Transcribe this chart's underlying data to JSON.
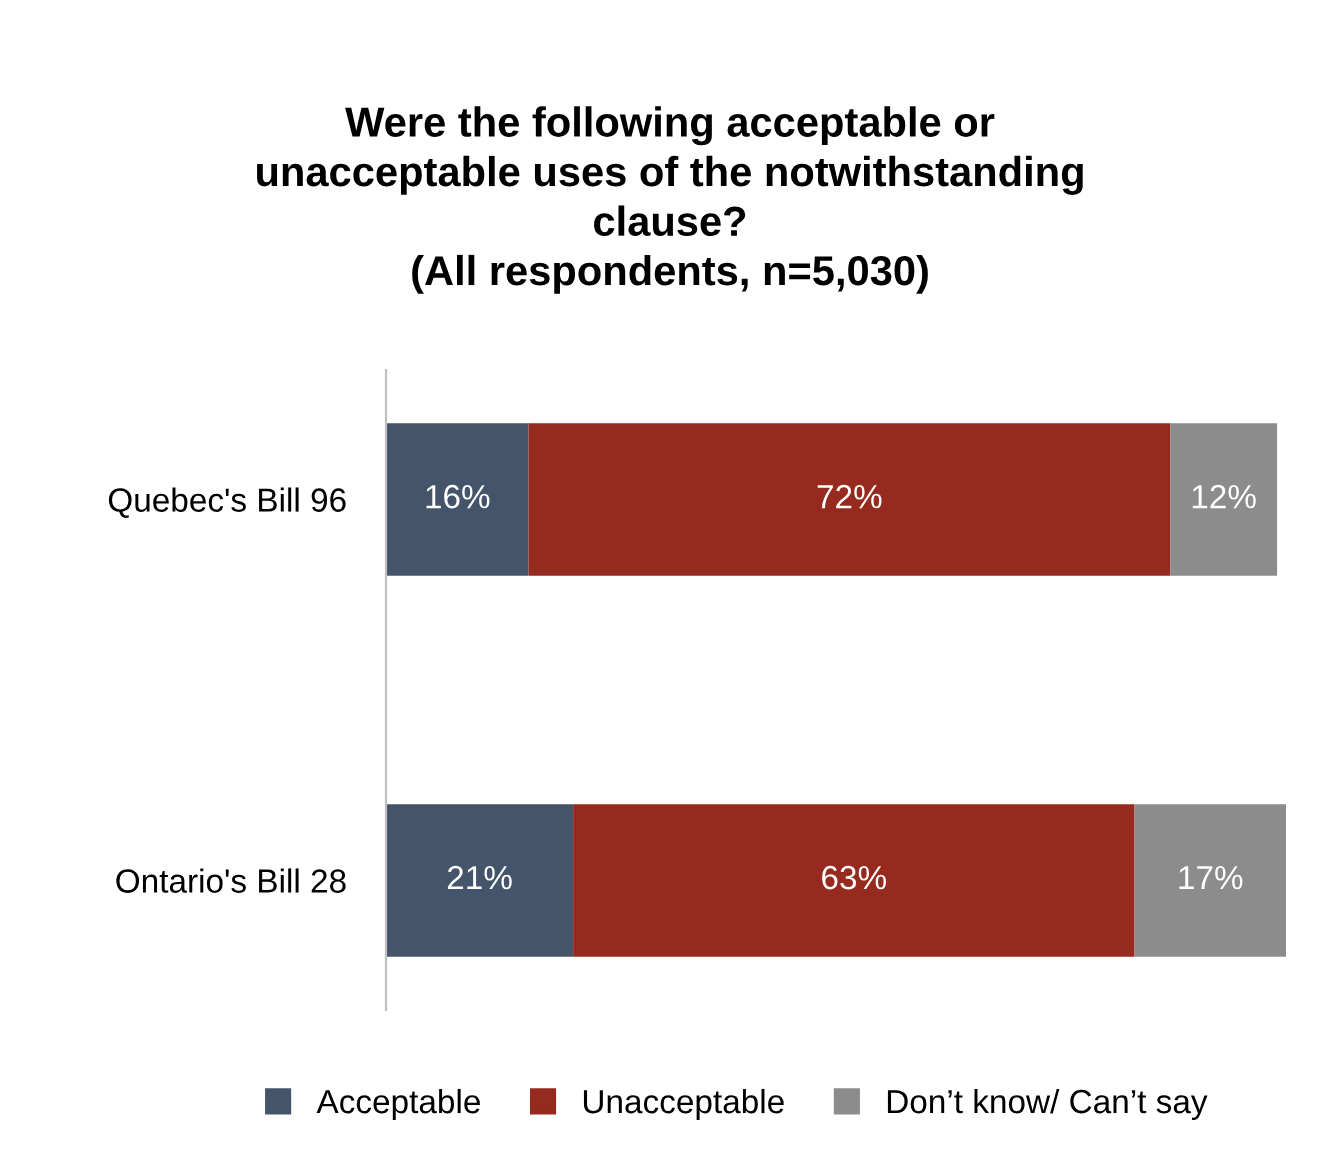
{
  "chart_data": {
    "type": "bar",
    "orientation": "horizontal",
    "stacked": true,
    "title": "Were the following acceptable or\nunacceptable uses of the notwithstanding\nclause?\n(All respondents, n=5,030)",
    "categories": [
      "Quebec's Bill 96",
      "Ontario's Bill 28"
    ],
    "series": [
      {
        "name": "Acceptable",
        "color": "#44546a",
        "values": [
          16,
          21
        ],
        "value_labels": [
          "16%",
          "21%"
        ]
      },
      {
        "name": "Unacceptable",
        "color": "#962a1f",
        "values": [
          72,
          63
        ],
        "value_labels": [
          "72%",
          "63%"
        ]
      },
      {
        "name": "Don’t know/ Can’t say",
        "color": "#8c8c8c",
        "values": [
          12,
          17
        ],
        "value_labels": [
          "12%",
          "17%"
        ]
      }
    ],
    "legend": "bottom"
  }
}
